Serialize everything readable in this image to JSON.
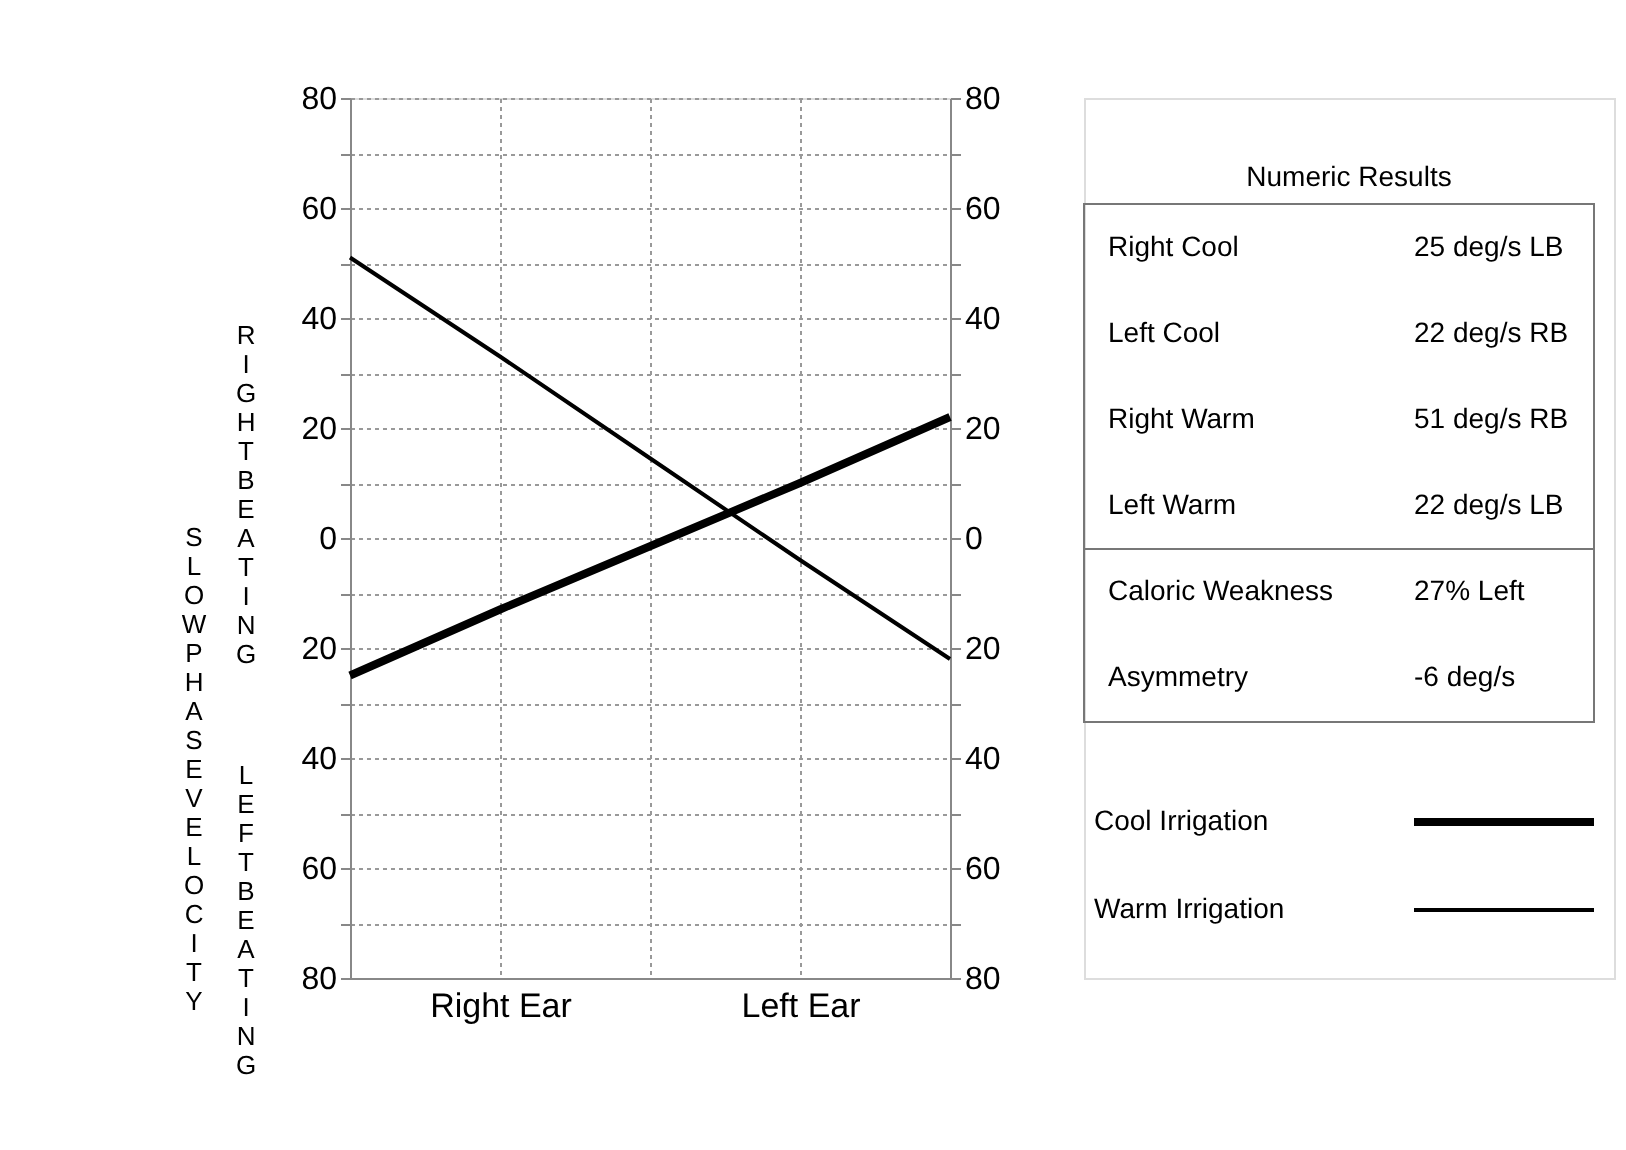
{
  "chart_data": {
    "type": "line",
    "ylabel": "SLOW PHASE VELOCITY",
    "annotations": [
      "RIGHT BEATING",
      "LEFT BEATING",
      "Numeric Results",
      "Right Cool",
      "25 deg/s LB",
      "Left Cool",
      "22 deg/s RB",
      "Right Warm",
      "51 deg/s RB",
      "Left Warm",
      "22 deg/s LB",
      "Caloric Weakness",
      "27% Left",
      "Asymmetry",
      "-6 deg/s"
    ],
    "categories": [
      null,
      "Right Ear",
      null,
      "Left Ear",
      null
    ],
    "series": [
      {
        "name": "Cool Irrigation",
        "color": "#000000",
        "values": [
          -25,
          -13,
          -1.5,
          10,
          22
        ]
      },
      {
        "name": "Warm Irrigation",
        "color": "#000000",
        "values": [
          51,
          33,
          14.5,
          -4,
          -22
        ]
      }
    ],
    "ylim": [
      -80,
      80
    ],
    "yticks": [
      {
        "value": -80,
        "label": "80"
      },
      {
        "value": -70,
        "label": null
      },
      {
        "value": -60,
        "label": "60"
      },
      {
        "value": -50,
        "label": null
      },
      {
        "value": -40,
        "label": "40"
      },
      {
        "value": -30,
        "label": null
      },
      {
        "value": -20,
        "label": "20"
      },
      {
        "value": -10,
        "label": null
      },
      {
        "value": 0,
        "label": "0"
      },
      {
        "value": 10,
        "label": null
      },
      {
        "value": 20,
        "label": "20"
      },
      {
        "value": 30,
        "label": null
      },
      {
        "value": 40,
        "label": "40"
      },
      {
        "value": 50,
        "label": null
      },
      {
        "value": 60,
        "label": "60"
      },
      {
        "value": 70,
        "label": null
      },
      {
        "value": 80,
        "label": "80"
      }
    ],
    "y2lim": [
      -80,
      80
    ],
    "y2ticks": [
      {
        "value": -80,
        "label": "80"
      },
      {
        "value": -70,
        "label": null
      },
      {
        "value": -60,
        "label": "60"
      },
      {
        "value": -50,
        "label": null
      },
      {
        "value": -40,
        "label": "40"
      },
      {
        "value": -30,
        "label": null
      },
      {
        "value": -20,
        "label": "20"
      },
      {
        "value": -10,
        "label": null
      },
      {
        "value": 0,
        "label": "0"
      },
      {
        "value": 10,
        "label": null
      },
      {
        "value": 20,
        "label": "20"
      },
      {
        "value": 30,
        "label": null
      },
      {
        "value": 40,
        "label": "40"
      },
      {
        "value": 50,
        "label": null
      },
      {
        "value": 60,
        "label": "60"
      },
      {
        "value": 70,
        "label": null
      },
      {
        "value": 80,
        "label": "80"
      }
    ],
    "grid": true,
    "legend": "right",
    "line_style": "solid",
    "marker": "none"
  }
}
